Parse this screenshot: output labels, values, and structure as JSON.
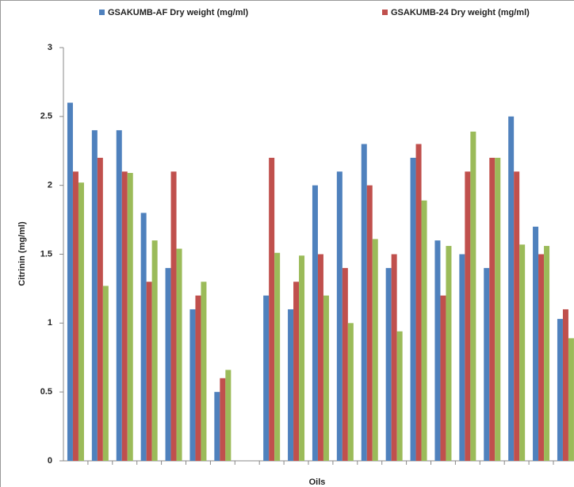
{
  "chart_data": {
    "type": "bar",
    "y_label": "Citrinin (mg/ml)",
    "x_label": "Oils",
    "categories": [
      null,
      null,
      null,
      null,
      null,
      null,
      null,
      null,
      null,
      null,
      null,
      null,
      null,
      null,
      null,
      null,
      null,
      null,
      null,
      null,
      null
    ],
    "series": [
      {
        "name": "GSAKUMB-AF Dry weight (mg/ml)",
        "color": "#4f81bd",
        "values": [
          2.6,
          2.4,
          2.4,
          1.8,
          1.4,
          1.1,
          0.5,
          null,
          1.2,
          1.1,
          2.0,
          2.1,
          2.3,
          1.4,
          2.2,
          1.6,
          1.5,
          1.4,
          2.5,
          1.7,
          1.03
        ]
      },
      {
        "name": "GSAKUMB-24 Dry weight (mg/ml)",
        "color": "#c0504d",
        "values": [
          2.1,
          2.2,
          2.1,
          1.3,
          2.1,
          1.2,
          0.6,
          null,
          2.2,
          1.3,
          1.5,
          1.4,
          2.0,
          1.5,
          2.3,
          1.2,
          2.1,
          2.2,
          2.1,
          1.5,
          1.1
        ]
      },
      {
        "color": "#9bbb59",
        "values": [
          2.02,
          1.27,
          2.09,
          1.6,
          1.54,
          1.3,
          0.66,
          null,
          1.51,
          1.49,
          1.2,
          1.0,
          1.61,
          0.94,
          1.89,
          1.56,
          2.39,
          2.2,
          1.57,
          1.56,
          0.89
        ]
      }
    ],
    "ylim": [
      0,
      3
    ],
    "yticks": [
      0,
      0.5,
      1,
      1.5,
      2,
      2.5,
      3
    ],
    "grid": false,
    "legend": "top"
  }
}
